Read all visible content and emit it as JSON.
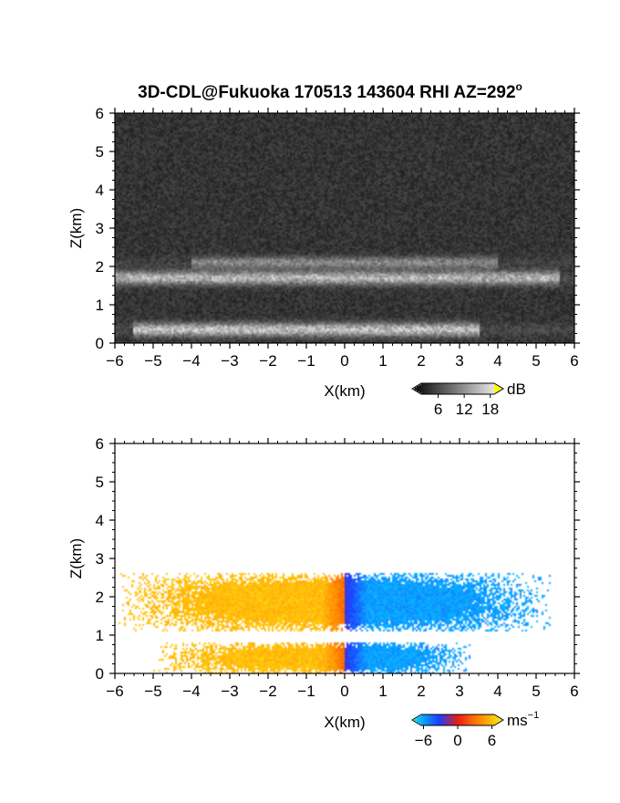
{
  "figure": {
    "title": "3D-CDL@Fukuoka 170513 143604 RHI AZ=292",
    "title_superscript": "o"
  },
  "chart_data": [
    {
      "type": "heatmap",
      "name": "reflectivity",
      "title": "3D-CDL@Fukuoka 170513 143604 RHI AZ=292°",
      "xlabel": "X(km)",
      "ylabel": "Z(km)",
      "xlim": [
        -6,
        6
      ],
      "ylim": [
        0,
        6
      ],
      "x_ticks": [
        -6,
        -5,
        -4,
        -3,
        -2,
        -1,
        0,
        1,
        2,
        3,
        4,
        5,
        6
      ],
      "y_ticks": [
        0,
        1,
        2,
        3,
        4,
        5,
        6
      ],
      "colorbar": {
        "unit": "dB",
        "ticks": [
          6,
          12,
          18
        ],
        "range": [
          0,
          21
        ],
        "colormap": "grayscale"
      },
      "background_level_db": 3,
      "layers": [
        {
          "z_center_km": 1.7,
          "z_width_km": 0.35,
          "x_extent_km": [
            -6,
            5.6
          ],
          "intensity_db": 12
        },
        {
          "z_center_km": 2.1,
          "z_width_km": 0.3,
          "x_extent_km": [
            -4,
            4
          ],
          "intensity_db": 8
        },
        {
          "z_center_km": 0.35,
          "z_width_km": 0.35,
          "x_extent_km": [
            -5.5,
            3.5
          ],
          "intensity_db": 13
        }
      ]
    },
    {
      "type": "heatmap",
      "name": "doppler_velocity",
      "xlabel": "X(km)",
      "ylabel": "Z(km)",
      "xlim": [
        -6,
        6
      ],
      "ylim": [
        0,
        6
      ],
      "x_ticks": [
        -6,
        -5,
        -4,
        -3,
        -2,
        -1,
        0,
        1,
        2,
        3,
        4,
        5,
        6
      ],
      "y_ticks": [
        0,
        1,
        2,
        3,
        4,
        5,
        6
      ],
      "colorbar": {
        "unit": "ms",
        "unit_superscript": "−1",
        "ticks": [
          "−6",
          "0",
          "6"
        ],
        "range": [
          -8,
          8
        ],
        "colormap": "cyan-blue-red-yellow"
      },
      "layers": [
        {
          "z_range_km": [
            1.1,
            2.6
          ],
          "x_extent_km": [
            -5.9,
            5.4
          ],
          "velocity_left_ms": 6,
          "velocity_right_ms": -6
        },
        {
          "z_range_km": [
            0.0,
            0.8
          ],
          "x_extent_km": [
            -5.0,
            3.3
          ],
          "velocity_left_ms": 6,
          "velocity_right_ms": -6
        }
      ]
    }
  ]
}
